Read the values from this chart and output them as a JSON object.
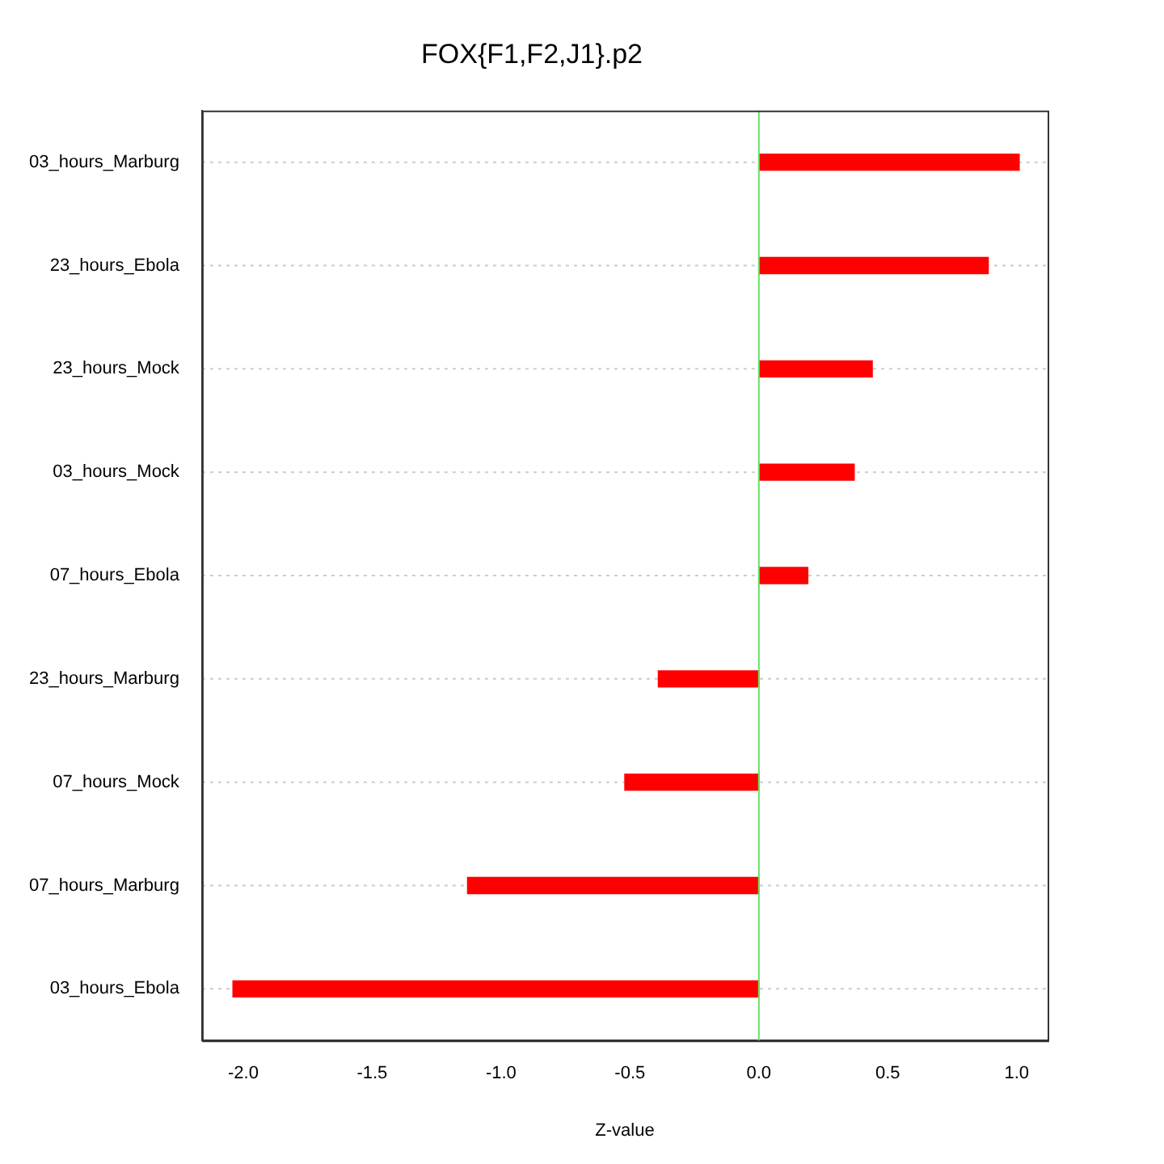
{
  "chart_data": {
    "type": "bar",
    "orientation": "horizontal",
    "title": "FOX{F1,F2,J1}.p2",
    "xlabel": "Z-value",
    "categories": [
      "03_hours_Marburg",
      "23_hours_Ebola",
      "23_hours_Mock",
      "03_hours_Mock",
      "07_hours_Ebola",
      "23_hours_Marburg",
      "07_hours_Mock",
      "07_hours_Marburg",
      "03_hours_Ebola"
    ],
    "values": [
      1.01,
      0.89,
      0.44,
      0.37,
      0.19,
      -0.39,
      -0.52,
      -1.13,
      -2.04
    ],
    "color": "#ff0000",
    "xlim": [
      -2.16,
      1.12
    ],
    "xticks": [
      {
        "value": -2,
        "label": "-2.0"
      },
      {
        "value": -1.5,
        "label": "-1.5"
      },
      {
        "value": -1,
        "label": "-1.0"
      },
      {
        "value": -0.5,
        "label": "-0.5"
      },
      {
        "value": 0,
        "label": "0.0"
      },
      {
        "value": 0.5,
        "label": "0.5"
      },
      {
        "value": 1,
        "label": "1.0"
      }
    ],
    "grid": "y",
    "ref_lines": [
      {
        "axis": "x",
        "value": 0,
        "color": "#66e066"
      }
    ]
  }
}
